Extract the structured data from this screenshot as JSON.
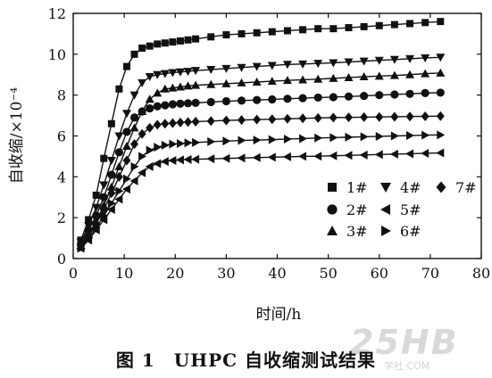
{
  "chart_data": {
    "type": "line",
    "xlabel": "时间/h",
    "ylabel": "自收缩/×10⁻⁴",
    "xlim": [
      0,
      80
    ],
    "ylim": [
      0,
      12
    ],
    "xticks": [
      0,
      10,
      20,
      30,
      40,
      50,
      60,
      70,
      80
    ],
    "yticks": [
      0,
      2,
      4,
      6,
      8,
      10,
      12
    ],
    "grid": false,
    "legend_position": "bottom-right",
    "x": [
      1.5,
      3,
      4.5,
      6,
      7.5,
      9,
      10.5,
      12,
      13.5,
      15,
      16.5,
      18,
      19.5,
      21,
      22.5,
      24,
      27,
      30,
      33,
      36,
      39,
      42,
      45,
      48,
      51,
      54,
      57,
      60,
      63,
      66,
      69,
      72
    ],
    "series": [
      {
        "name": "1#",
        "marker": "square",
        "values": [
          0.9,
          1.9,
          3.1,
          4.9,
          6.6,
          8.3,
          9.4,
          10.0,
          10.3,
          10.4,
          10.5,
          10.55,
          10.6,
          10.65,
          10.7,
          10.75,
          10.85,
          10.95,
          11.0,
          11.05,
          11.1,
          11.15,
          11.2,
          11.25,
          11.25,
          11.3,
          11.35,
          11.4,
          11.45,
          11.5,
          11.55,
          11.6
        ]
      },
      {
        "name": "2#",
        "marker": "circle",
        "values": [
          0.7,
          1.4,
          2.1,
          3.0,
          4.1,
          5.2,
          6.2,
          6.9,
          7.2,
          7.35,
          7.45,
          7.5,
          7.55,
          7.58,
          7.6,
          7.62,
          7.66,
          7.7,
          7.73,
          7.76,
          7.79,
          7.82,
          7.85,
          7.88,
          7.9,
          7.93,
          7.96,
          8.0,
          8.03,
          8.06,
          8.1,
          8.12
        ]
      },
      {
        "name": "3#",
        "marker": "triangle-up",
        "values": [
          0.6,
          1.2,
          1.8,
          2.6,
          3.5,
          4.5,
          5.5,
          6.4,
          7.2,
          7.8,
          8.1,
          8.3,
          8.35,
          8.4,
          8.45,
          8.48,
          8.52,
          8.56,
          8.6,
          8.64,
          8.68,
          8.72,
          8.75,
          8.78,
          8.82,
          8.86,
          8.9,
          8.93,
          8.96,
          9.0,
          9.05,
          9.08
        ]
      },
      {
        "name": "4#",
        "marker": "triangle-down",
        "values": [
          0.8,
          1.6,
          2.5,
          3.6,
          4.8,
          6.0,
          7.1,
          8.0,
          8.6,
          8.9,
          9.0,
          9.05,
          9.1,
          9.13,
          9.16,
          9.2,
          9.25,
          9.3,
          9.35,
          9.4,
          9.45,
          9.5,
          9.52,
          9.55,
          9.58,
          9.62,
          9.66,
          9.7,
          9.74,
          9.78,
          9.82,
          9.85
        ]
      },
      {
        "name": "5#",
        "marker": "triangle-left",
        "values": [
          0.5,
          0.9,
          1.4,
          1.9,
          2.4,
          2.9,
          3.4,
          3.8,
          4.2,
          4.5,
          4.65,
          4.75,
          4.8,
          4.83,
          4.85,
          4.86,
          4.88,
          4.9,
          4.92,
          4.94,
          4.96,
          4.98,
          5.0,
          5.01,
          5.03,
          5.05,
          5.07,
          5.09,
          5.11,
          5.13,
          5.15,
          5.17
        ]
      },
      {
        "name": "6#",
        "marker": "triangle-right",
        "values": [
          0.5,
          1.0,
          1.5,
          2.1,
          2.7,
          3.3,
          3.9,
          4.5,
          5.0,
          5.3,
          5.45,
          5.55,
          5.6,
          5.63,
          5.66,
          5.68,
          5.72,
          5.75,
          5.78,
          5.8,
          5.82,
          5.85,
          5.87,
          5.9,
          5.92,
          5.94,
          5.96,
          5.98,
          6.0,
          6.02,
          6.04,
          6.05
        ]
      },
      {
        "name": "7#",
        "marker": "diamond",
        "values": [
          0.6,
          1.1,
          1.7,
          2.4,
          3.2,
          4.0,
          4.8,
          5.6,
          6.1,
          6.4,
          6.55,
          6.6,
          6.63,
          6.66,
          6.68,
          6.7,
          6.73,
          6.76,
          6.78,
          6.8,
          6.82,
          6.84,
          6.86,
          6.88,
          6.9,
          6.91,
          6.92,
          6.93,
          6.94,
          6.95,
          6.96,
          6.97
        ]
      }
    ]
  },
  "caption": "图 1　UHPC 自收缩测试结果",
  "watermark": "25HB",
  "watermark_sub": "学社·COM"
}
